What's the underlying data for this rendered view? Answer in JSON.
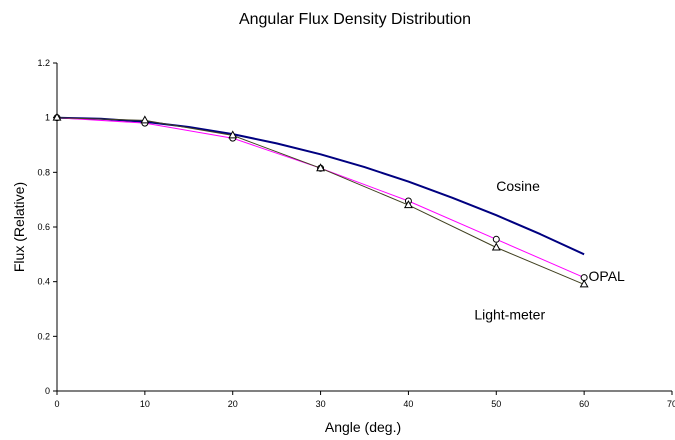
{
  "chart_data": {
    "type": "line",
    "title": "Angular Flux Density Distribution",
    "xlabel": "Angle (deg.)",
    "ylabel": "Flux (Relative)",
    "xlim": [
      0,
      70
    ],
    "ylim": [
      0,
      1.2
    ],
    "xticks": [
      0,
      10,
      20,
      30,
      40,
      50,
      60,
      70
    ],
    "yticks": [
      0,
      0.2,
      0.4,
      0.6,
      0.8,
      1,
      1.2
    ],
    "xtick_labels": [
      "0",
      "10",
      "20",
      "30",
      "40",
      "50",
      "60",
      "70"
    ],
    "ytick_labels": [
      "0",
      "0.2",
      "0.4",
      "0.6",
      "0.8",
      "1",
      "1.2"
    ],
    "grid": false,
    "legend": "none",
    "series": [
      {
        "name": "Cosine",
        "color": "#000080",
        "marker": "none",
        "x": [
          0,
          5,
          10,
          15,
          20,
          25,
          30,
          35,
          40,
          45,
          50,
          55,
          60
        ],
        "y": [
          1.0,
          0.996,
          0.985,
          0.966,
          0.94,
          0.906,
          0.866,
          0.819,
          0.766,
          0.707,
          0.643,
          0.574,
          0.5
        ]
      },
      {
        "name": "OPAL",
        "color": "#ff00ff",
        "marker": "circle",
        "x": [
          0,
          10,
          20,
          30,
          40,
          50,
          60
        ],
        "y": [
          1.0,
          0.98,
          0.925,
          0.815,
          0.695,
          0.555,
          0.415
        ]
      },
      {
        "name": "Light-meter",
        "color": "#404020",
        "marker": "triangle",
        "x": [
          0,
          10,
          20,
          30,
          40,
          50,
          60
        ],
        "y": [
          1.0,
          0.99,
          0.935,
          0.815,
          0.68,
          0.525,
          0.39
        ]
      }
    ],
    "annotations": [
      {
        "text": "Cosine",
        "x": 50,
        "y": 0.75
      },
      {
        "text": "OPAL",
        "x": 60.5,
        "y": 0.42
      },
      {
        "text": "Light-meter",
        "x": 47.5,
        "y": 0.28
      }
    ]
  }
}
